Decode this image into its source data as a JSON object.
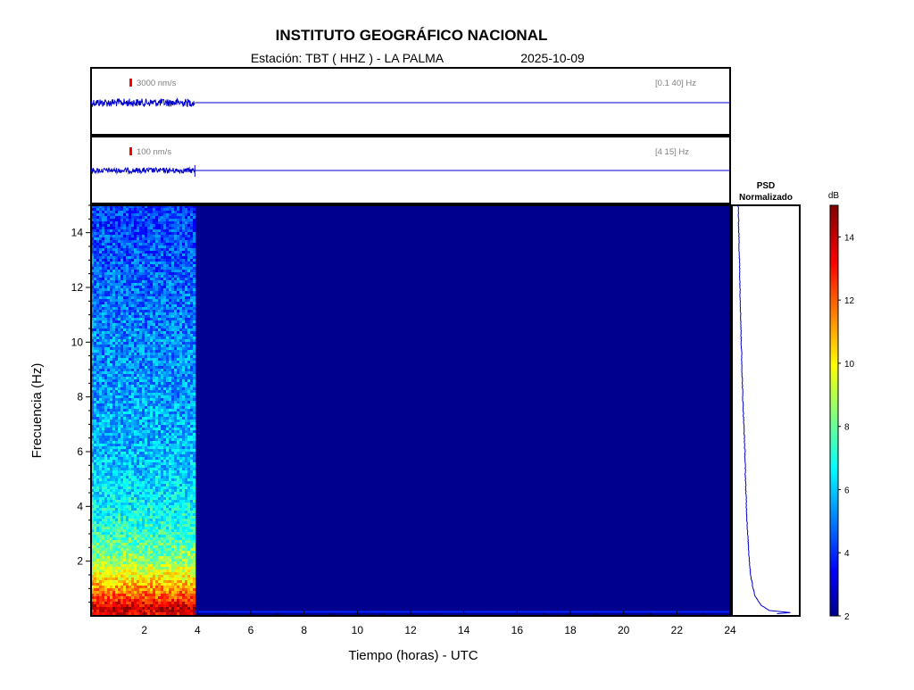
{
  "header": {
    "title": "INSTITUTO GEOGRÁFICO NACIONAL",
    "station": "Estación:  TBT ( HHZ ) - LA PALMA",
    "date": "2025-10-09"
  },
  "colors": {
    "trace": "#0000cc",
    "scale_marker": "#ff0000",
    "frame": "#000000",
    "empty_spectrogram": "#00008f"
  },
  "chart_data": [
    {
      "type": "line",
      "panel": "seismogram-broadband",
      "scale_label": "3000 nm/s",
      "filter_label": "[0.1 40] Hz",
      "x_range_hours": [
        0,
        24
      ],
      "data_until_hour": 3.9,
      "noise_amplitude_nm_s": 900
    },
    {
      "type": "line",
      "panel": "seismogram-filtered",
      "scale_label": "100 nm/s",
      "filter_label": "[4 15] Hz",
      "x_range_hours": [
        0,
        24
      ],
      "data_until_hour": 3.9,
      "noise_amplitude_nm_s": 25
    },
    {
      "type": "heatmap",
      "panel": "spectrogram",
      "xlabel": "Tiempo (horas) - UTC",
      "ylabel": "Frecuencia  (Hz)",
      "xlim": [
        0,
        24
      ],
      "ylim": [
        0,
        15
      ],
      "xticks": [
        2,
        4,
        6,
        8,
        10,
        12,
        14,
        16,
        18,
        20,
        22,
        24
      ],
      "yticks": [
        2,
        4,
        6,
        8,
        10,
        12,
        14
      ],
      "data_until_hour": 3.9,
      "freq_profile_db": [
        {
          "hz": 0.1,
          "db": 13.5
        },
        {
          "hz": 0.3,
          "db": 14.2
        },
        {
          "hz": 0.6,
          "db": 12.5
        },
        {
          "hz": 1.0,
          "db": 11.5
        },
        {
          "hz": 1.5,
          "db": 10.0
        },
        {
          "hz": 2.0,
          "db": 8.8
        },
        {
          "hz": 3.0,
          "db": 7.5
        },
        {
          "hz": 4.0,
          "db": 6.8
        },
        {
          "hz": 6.0,
          "db": 6.0
        },
        {
          "hz": 8.0,
          "db": 5.6
        },
        {
          "hz": 10.0,
          "db": 5.3
        },
        {
          "hz": 12.0,
          "db": 5.0
        },
        {
          "hz": 14.0,
          "db": 4.6
        },
        {
          "hz": 15.0,
          "db": 4.3
        }
      ],
      "background_db": 2.3
    },
    {
      "type": "line",
      "panel": "psd",
      "title_line1": "PSD",
      "title_line2": "Normalizado",
      "ylim": [
        0,
        15
      ],
      "points": [
        {
          "hz": 0.05,
          "psd": 0.22
        },
        {
          "hz": 0.1,
          "psd": 1.0
        },
        {
          "hz": 0.2,
          "psd": 0.55
        },
        {
          "hz": 0.4,
          "psd": 0.42
        },
        {
          "hz": 0.7,
          "psd": 0.33
        },
        {
          "hz": 1.0,
          "psd": 0.29
        },
        {
          "hz": 1.5,
          "psd": 0.25
        },
        {
          "hz": 2.0,
          "psd": 0.23
        },
        {
          "hz": 3.0,
          "psd": 0.2
        },
        {
          "hz": 4.0,
          "psd": 0.18
        },
        {
          "hz": 5.0,
          "psd": 0.165
        },
        {
          "hz": 6.0,
          "psd": 0.155
        },
        {
          "hz": 8.0,
          "psd": 0.12
        },
        {
          "hz": 10.0,
          "psd": 0.095
        },
        {
          "hz": 12.0,
          "psd": 0.075
        },
        {
          "hz": 14.0,
          "psd": 0.055
        },
        {
          "hz": 15.0,
          "psd": 0.045
        }
      ]
    },
    {
      "type": "colorbar",
      "panel": "colorbar",
      "label": "dB",
      "range": [
        2,
        15
      ],
      "ticks": [
        2,
        4,
        6,
        8,
        10,
        12,
        14
      ]
    }
  ]
}
